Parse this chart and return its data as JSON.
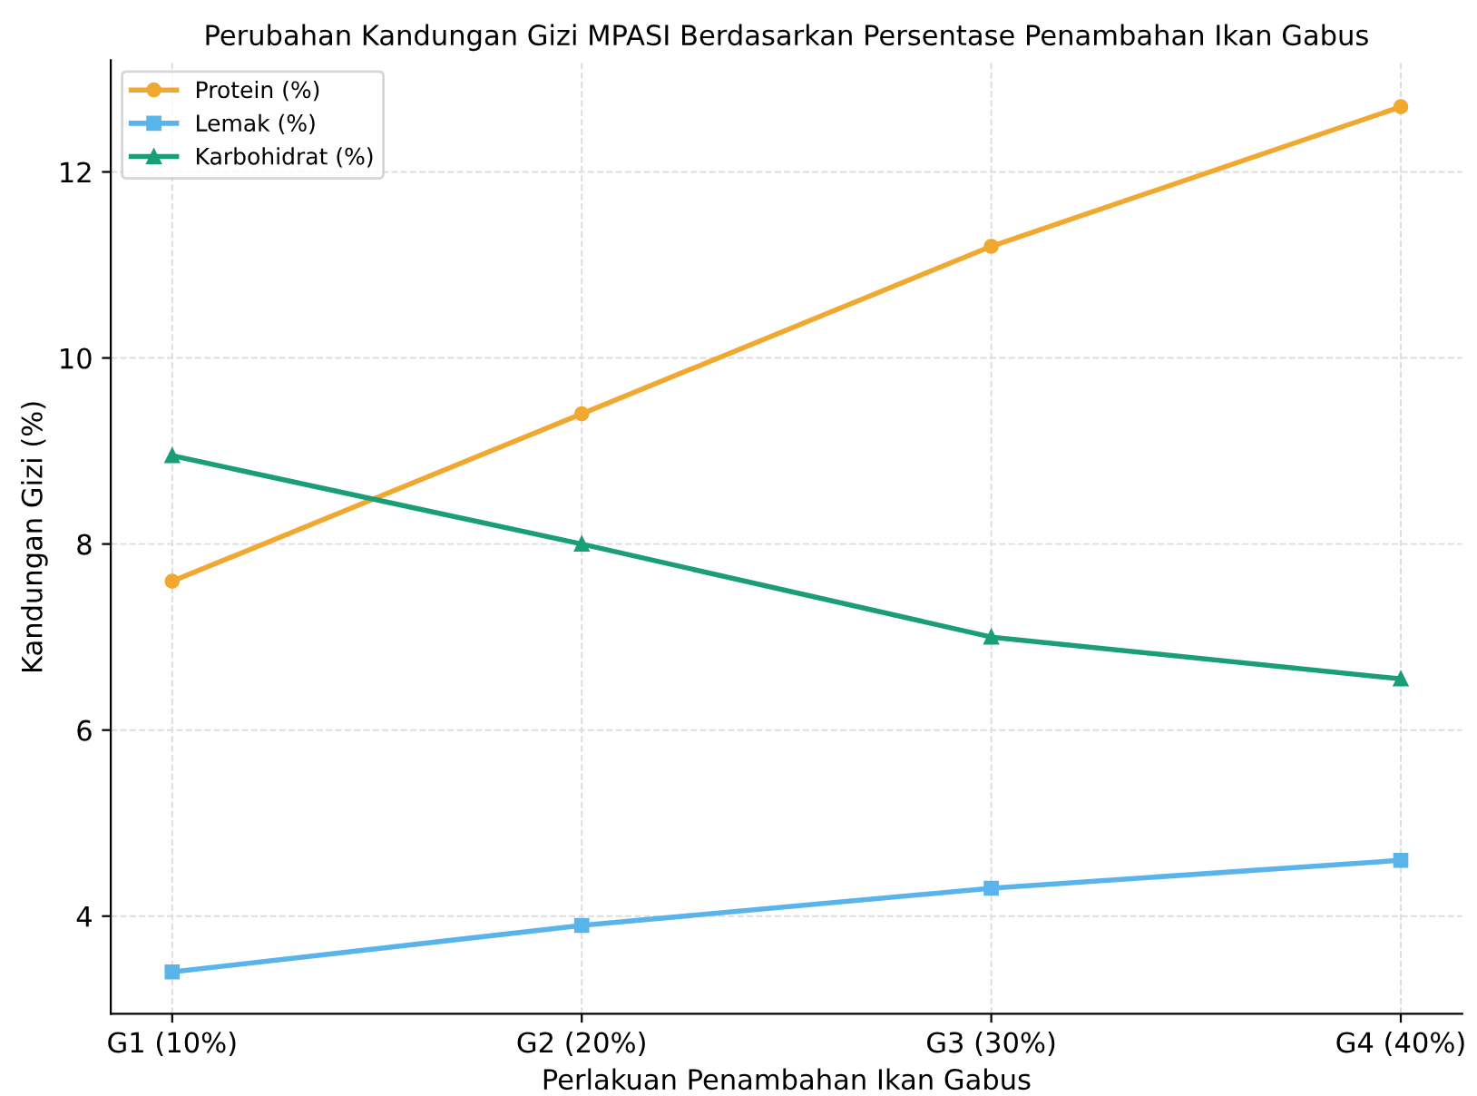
{
  "chart_data": {
    "type": "line",
    "title": "Perubahan Kandungan Gizi MPASI Berdasarkan Persentase Penambahan Ikan Gabus",
    "xlabel": "Perlakuan Penambahan Ikan Gabus",
    "ylabel": "Kandungan Gizi (%)",
    "categories": [
      "G1 (10%)",
      "G2 (20%)",
      "G3 (30%)",
      "G4 (40%)"
    ],
    "series": [
      {
        "name": "Protein (%)",
        "color": "#f0a830",
        "marker": "circle",
        "values": [
          7.6,
          9.4,
          11.2,
          12.7
        ]
      },
      {
        "name": "Lemak (%)",
        "color": "#5ab4ec",
        "marker": "square",
        "values": [
          3.4,
          3.9,
          4.3,
          4.6
        ]
      },
      {
        "name": "Karbohidrat (%)",
        "color": "#1a9e77",
        "marker": "triangle",
        "values": [
          8.95,
          8.0,
          7.0,
          6.55
        ]
      }
    ],
    "ylim": [
      2.95,
      13.2
    ],
    "yticks": [
      4,
      6,
      8,
      10,
      12
    ],
    "grid": true,
    "legend": "top left",
    "line_style": "solid"
  }
}
